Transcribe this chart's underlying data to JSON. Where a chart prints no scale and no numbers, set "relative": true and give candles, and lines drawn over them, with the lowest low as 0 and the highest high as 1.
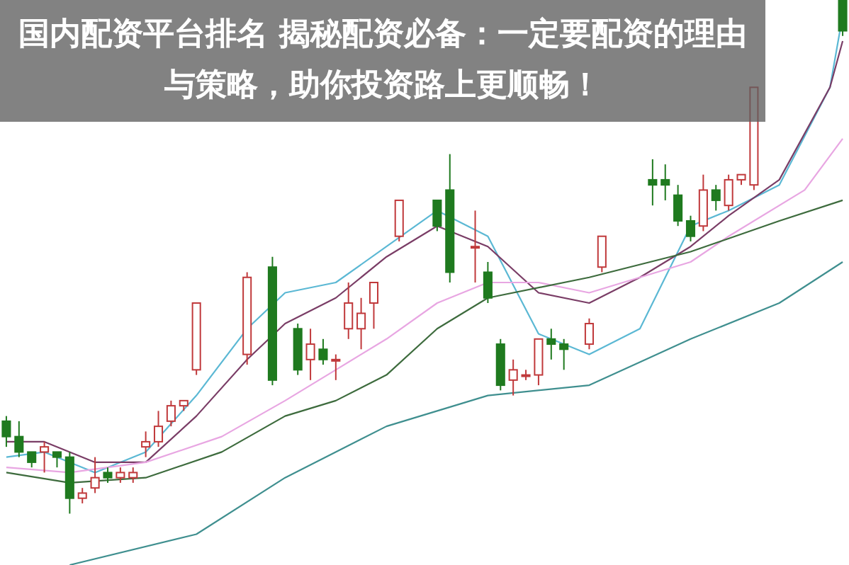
{
  "chart_data": {
    "type": "candlestick",
    "title": "国内配资平台排名 揭秘配资必备：一定要配资的理由与策略，助你投资路上更顺畅！",
    "relative": true,
    "categories": [
      null,
      null,
      null,
      null,
      null,
      null,
      null,
      null,
      null,
      null,
      null,
      null,
      null,
      null,
      null,
      null,
      null,
      null,
      null,
      null,
      null,
      null,
      null,
      null,
      null,
      null,
      null,
      null,
      null,
      null,
      null,
      null,
      null,
      null,
      null,
      null,
      null,
      null,
      null,
      null,
      null,
      null,
      null,
      null,
      null,
      null,
      null,
      null,
      null,
      null,
      null,
      null,
      null,
      null,
      null,
      null,
      null,
      null,
      null,
      null,
      null,
      null,
      null,
      null,
      null,
      null,
      null
    ],
    "ohlc": [
      [
        0.18,
        0.19,
        0.13,
        0.15
      ],
      [
        0.15,
        0.18,
        0.11,
        0.12
      ],
      [
        0.12,
        0.12,
        0.09,
        0.1
      ],
      [
        0.12,
        0.14,
        0.08,
        0.13
      ],
      [
        0.12,
        0.12,
        0.09,
        0.11
      ],
      [
        0.11,
        0.12,
        0,
        0.03
      ],
      [
        0.03,
        0.05,
        0.02,
        0.04
      ],
      [
        0.05,
        0.11,
        0.04,
        0.07
      ],
      [
        0.08,
        0.09,
        0.06,
        0.07
      ],
      [
        0.07,
        0.09,
        0.06,
        0.08
      ],
      [
        0.07,
        0.09,
        0.06,
        0.08
      ],
      [
        0.13,
        0.16,
        0.11,
        0.14
      ],
      [
        0.14,
        0.2,
        0.13,
        0.17
      ],
      [
        0.18,
        0.22,
        0.17,
        0.21
      ],
      [
        0.21,
        0.22,
        0.2,
        0.22
      ],
      [
        0.28,
        0.41,
        0.27,
        0.41
      ],
      null,
      null,
      null,
      [
        0.31,
        0.47,
        0.29,
        0.46
      ],
      null,
      [
        0.48,
        0.5,
        0.25,
        0.26
      ],
      null,
      [
        0.36,
        0.37,
        0.27,
        0.28
      ],
      [
        0.3,
        0.36,
        0.26,
        0.33
      ],
      [
        0.32,
        0.34,
        0.29,
        0.3
      ],
      [
        0.3,
        0.31,
        0.26,
        0.3
      ],
      [
        0.36,
        0.45,
        0.34,
        0.41
      ],
      [
        0.36,
        0.42,
        0.32,
        0.39
      ],
      [
        0.41,
        0.45,
        0.36,
        0.45
      ],
      null,
      [
        0.54,
        0.61,
        0.53,
        0.61
      ],
      null,
      null,
      [
        0.61,
        0.61,
        0.55,
        0.56
      ],
      [
        0.63,
        0.7,
        0.45,
        0.47
      ],
      null,
      [
        0.52,
        0.59,
        0.45,
        0.52
      ],
      [
        0.47,
        0.49,
        0.41,
        0.42
      ],
      [
        0.33,
        0.34,
        0.24,
        0.25
      ],
      [
        0.26,
        0.3,
        0.23,
        0.28
      ],
      [
        0.27,
        0.28,
        0.26,
        0.27
      ],
      [
        0.27,
        0.34,
        0.25,
        0.34
      ],
      [
        0.34,
        0.36,
        0.3,
        0.33
      ],
      [
        0.33,
        0.34,
        0.28,
        0.32
      ],
      null,
      [
        0.33,
        0.38,
        0.32,
        0.37
      ],
      [
        0.48,
        0.54,
        0.47,
        0.54
      ],
      null,
      null,
      null,
      [
        0.65,
        0.69,
        0.6,
        0.64
      ],
      [
        0.65,
        0.68,
        0.61,
        0.64
      ],
      [
        0.62,
        0.64,
        0.56,
        0.57
      ],
      [
        0.57,
        0.58,
        0.53,
        0.54
      ],
      [
        0.56,
        0.66,
        0.55,
        0.63
      ],
      [
        0.63,
        0.64,
        0.59,
        0.61
      ],
      [
        0.6,
        0.66,
        0.59,
        0.65
      ],
      [
        0.65,
        0.66,
        0.64,
        0.66
      ],
      [
        0.64,
        0.83,
        0.63,
        0.83
      ],
      null,
      null,
      null,
      null,
      null,
      null,
      [
        1,
        1,
        0.93,
        0.94
      ]
    ],
    "series": [
      {
        "type": "line",
        "color": "#5bb8d4",
        "values": [
          0.11,
          null,
          null,
          0.12,
          null,
          null,
          null,
          0.08,
          null,
          null,
          null,
          0.12,
          null,
          null,
          null,
          0.23,
          null,
          null,
          null,
          0.36,
          null,
          null,
          0.43,
          null,
          null,
          null,
          0.45,
          null,
          null,
          null,
          0.52,
          null,
          null,
          null,
          0.59,
          null,
          null,
          null,
          0.54,
          null,
          null,
          null,
          0.35,
          null,
          null,
          null,
          0.31,
          null,
          null,
          null,
          0.36,
          null,
          null,
          null,
          0.56,
          null,
          null,
          0.59,
          null,
          null,
          null,
          0.64,
          null,
          null,
          null,
          0.83,
          0.97
        ]
      },
      {
        "type": "line",
        "color": "#7a3d66",
        "values": [
          0.14,
          null,
          null,
          0.14,
          null,
          null,
          null,
          0.1,
          null,
          null,
          null,
          0.1,
          null,
          null,
          null,
          0.19,
          null,
          null,
          null,
          0.3,
          null,
          null,
          0.37,
          null,
          null,
          null,
          0.42,
          null,
          null,
          null,
          0.5,
          null,
          null,
          null,
          0.56,
          null,
          null,
          null,
          0.52,
          null,
          null,
          null,
          0.43,
          null,
          null,
          null,
          0.41,
          null,
          null,
          null,
          0.46,
          null,
          null,
          null,
          0.52,
          null,
          null,
          0.58,
          null,
          null,
          null,
          0.65,
          null,
          null,
          null,
          0.83,
          0.92
        ]
      },
      {
        "type": "line",
        "color": "#e8a6e2",
        "values": [
          0.09,
          null,
          null,
          null,
          null,
          0.08,
          null,
          null,
          null,
          null,
          null,
          0.1,
          null,
          null,
          null,
          null,
          null,
          0.15,
          null,
          null,
          null,
          null,
          0.22,
          null,
          null,
          null,
          0.28,
          null,
          null,
          null,
          0.34,
          null,
          null,
          null,
          0.41,
          null,
          null,
          null,
          0.45,
          null,
          null,
          null,
          0.45,
          null,
          null,
          null,
          0.43,
          null,
          null,
          null,
          null,
          null,
          null,
          null,
          0.49,
          null,
          null,
          0.54,
          null,
          null,
          null,
          null,
          null,
          0.63,
          null,
          null,
          0.73
        ]
      },
      {
        "type": "line",
        "color": "#3d6b3d",
        "values": [
          0.08,
          null,
          null,
          null,
          null,
          0.06,
          null,
          null,
          null,
          null,
          null,
          0.07,
          null,
          null,
          null,
          null,
          null,
          0.12,
          null,
          null,
          null,
          null,
          0.19,
          null,
          null,
          null,
          0.22,
          null,
          null,
          null,
          0.27,
          null,
          null,
          null,
          0.36,
          null,
          null,
          null,
          0.42,
          null,
          null,
          null,
          null,
          null,
          null,
          null,
          0.46,
          null,
          null,
          null,
          null,
          null,
          null,
          null,
          0.51,
          null,
          null,
          null,
          null,
          null,
          null,
          0.57,
          null,
          null,
          null,
          null,
          0.61
        ]
      },
      {
        "type": "line",
        "color": "#3f8f8f",
        "values": [
          null,
          null,
          null,
          null,
          null,
          -0.1,
          null,
          null,
          null,
          null,
          null,
          null,
          null,
          null,
          null,
          -0.04,
          null,
          null,
          null,
          null,
          null,
          null,
          0.07,
          null,
          null,
          null,
          null,
          null,
          null,
          null,
          0.17,
          null,
          null,
          null,
          null,
          null,
          null,
          null,
          0.23,
          null,
          null,
          null,
          null,
          null,
          null,
          null,
          0.25,
          null,
          null,
          null,
          null,
          null,
          null,
          null,
          0.34,
          null,
          null,
          null,
          null,
          null,
          null,
          0.41,
          null,
          null,
          null,
          null,
          0.49
        ]
      }
    ]
  }
}
